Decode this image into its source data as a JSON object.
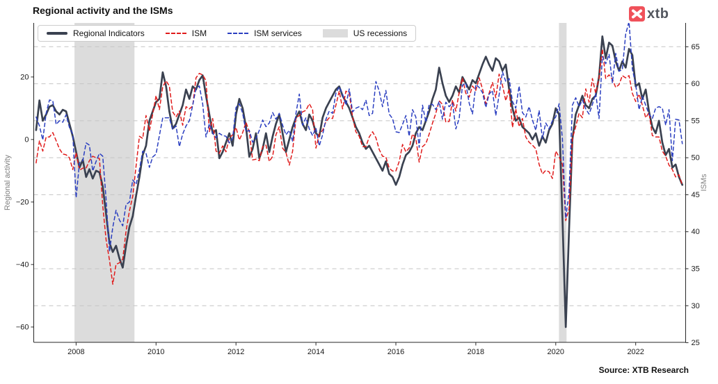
{
  "header": {
    "title": "Regional activity and the ISMs",
    "logo_text": "xtb",
    "logo_color": "#f0515a",
    "source": "Source: XTB Research"
  },
  "chart_data": {
    "type": "line",
    "title": "Regional activity and the ISMs",
    "grid": true,
    "legend_position": "top-left",
    "x_axis": {
      "range": [
        2006.94,
        2023.25
      ],
      "ticks": [
        2008,
        2010,
        2012,
        2014,
        2016,
        2018,
        2020,
        2022
      ]
    },
    "y_left": {
      "label": "Regional activity",
      "range": [
        -64.9,
        37.3
      ],
      "ticks": [
        20,
        0,
        -20,
        -40,
        -60
      ]
    },
    "y_right": {
      "label": "ISMs",
      "range": [
        25.05,
        68.22
      ],
      "ticks": [
        65,
        60,
        55,
        50,
        45,
        40,
        35,
        30,
        25
      ],
      "gridlines": [
        65,
        60,
        55,
        50,
        45,
        40,
        35,
        30
      ]
    },
    "legend": [
      {
        "label": "Regional Indicators",
        "color": "#3a4150",
        "style": "solid"
      },
      {
        "label": "ISM",
        "color": "#e01b1b",
        "style": "dashed"
      },
      {
        "label": "ISM services",
        "color": "#2a3ec0",
        "style": "dashed"
      },
      {
        "label": "US recessions",
        "color": "#dcdcdc",
        "style": "area"
      }
    ],
    "recessions": [
      {
        "from": 2007.96,
        "to": 2009.46
      },
      {
        "from": 2020.08,
        "to": 2020.27
      }
    ],
    "series": [
      {
        "name": "Regional Indicators",
        "axis": "left",
        "color": "#3a4150",
        "style": "solid",
        "width": 2.7,
        "start_year": 2007,
        "interval_months": 1,
        "values": [
          3,
          12.5,
          6,
          8,
          10.5,
          11,
          9,
          8,
          9.5,
          9,
          5,
          1,
          -4,
          -9,
          -6.5,
          -12,
          -9.5,
          -12.5,
          -10,
          -10.5,
          -15,
          -24,
          -33,
          -36,
          -34,
          -38,
          -41,
          -34,
          -28,
          -24.5,
          -18,
          -12,
          -5,
          -2,
          6,
          9,
          12,
          13,
          21.5,
          17,
          9,
          3.5,
          5,
          8,
          11,
          16,
          13,
          17,
          16,
          19,
          20.5,
          14,
          8,
          2,
          3,
          -6,
          -4,
          -1,
          2,
          -2,
          8,
          13,
          10,
          4,
          -5.5,
          -3,
          2,
          -6,
          -3,
          2,
          -4,
          1,
          5,
          8,
          2,
          -4,
          0,
          4,
          7,
          9,
          5,
          3,
          8,
          6,
          2,
          1,
          7,
          10,
          12,
          14,
          16,
          17,
          14,
          12,
          10,
          7,
          4,
          2,
          -1,
          -3,
          -2,
          -4,
          -6,
          -8,
          -10,
          -7,
          -11,
          -12,
          -14.5,
          -12,
          -8,
          -5,
          -4,
          -2,
          2,
          4,
          3,
          6,
          9,
          13,
          16,
          23,
          18,
          14,
          12,
          14,
          17,
          15,
          20,
          18,
          16,
          19,
          18,
          21,
          24,
          26.5,
          24,
          22,
          26,
          25,
          22,
          24,
          16,
          10,
          6,
          7,
          4,
          3,
          2,
          0,
          2,
          -2,
          1,
          -1,
          3,
          5,
          10,
          8,
          -25,
          -60,
          -29,
          0,
          8,
          11,
          14,
          11,
          10,
          13,
          14,
          20,
          33,
          26,
          31,
          30,
          25,
          22,
          25,
          23,
          29,
          27,
          17,
          18,
          13,
          16,
          9,
          4,
          2,
          6,
          -1,
          -5,
          -3,
          -9,
          -8,
          -12,
          -14.5
        ]
      },
      {
        "name": "ISM",
        "axis": "right",
        "color": "#e01b1b",
        "style": "dashed",
        "width": 1.5,
        "start_year": 2007,
        "interval_months": 1,
        "values": [
          49.3,
          52.3,
          50.9,
          52.8,
          52.8,
          53.4,
          52.3,
          51.2,
          50.5,
          50.4,
          50.0,
          48.4,
          50.7,
          48.3,
          48.6,
          48.6,
          49.6,
          50.2,
          50.0,
          49.9,
          43.5,
          38.9,
          36.2,
          32.9,
          35.6,
          35.8,
          36.3,
          40.1,
          42.8,
          44.8,
          48.9,
          52.9,
          52.6,
          55.7,
          53.6,
          55.9,
          58.4,
          56.5,
          59.6,
          60.4,
          59.7,
          56.2,
          55.5,
          56.3,
          54.4,
          56.9,
          56.6,
          57.0,
          60.8,
          61.4,
          61.2,
          60.4,
          53.5,
          55.3,
          50.9,
          50.6,
          51.6,
          50.8,
          52.7,
          53.1,
          54.1,
          52.4,
          53.4,
          54.8,
          53.5,
          49.7,
          49.8,
          49.6,
          51.5,
          51.7,
          49.5,
          50.2,
          53.1,
          54.2,
          51.3,
          50.7,
          49.0,
          50.9,
          55.4,
          55.7,
          56.2,
          56.4,
          57.3,
          56.5,
          51.3,
          53.2,
          53.7,
          54.9,
          55.4,
          55.3,
          57.1,
          59.0,
          56.6,
          59.0,
          58.7,
          55.5,
          53.5,
          52.9,
          51.5,
          51.5,
          52.8,
          53.5,
          52.7,
          51.1,
          50.2,
          50.1,
          48.6,
          48.2,
          48.2,
          49.5,
          51.8,
          50.8,
          51.3,
          53.2,
          52.6,
          49.4,
          51.5,
          51.9,
          53.2,
          54.7,
          56.0,
          57.7,
          57.2,
          54.8,
          54.9,
          57.8,
          56.3,
          58.8,
          60.8,
          58.7,
          58.2,
          59.7,
          59.1,
          60.8,
          59.3,
          57.3,
          58.7,
          60.2,
          58.1,
          61.3,
          59.8,
          57.7,
          59.3,
          54.1,
          56.6,
          54.2,
          55.3,
          52.8,
          52.1,
          51.7,
          51.2,
          49.1,
          47.8,
          48.3,
          48.1,
          47.2,
          50.9,
          50.1,
          49.1,
          41.5,
          43.1,
          52.6,
          54.2,
          56.0,
          55.4,
          59.3,
          57.5,
          60.7,
          58.7,
          60.8,
          64.7,
          60.7,
          61.2,
          60.6,
          59.5,
          59.9,
          61.1,
          60.8,
          61.1,
          58.7,
          57.6,
          58.6,
          57.1,
          55.4,
          56.1,
          53.0,
          52.8,
          52.8,
          50.9,
          50.2,
          49.0,
          48.4,
          47.4,
          47.7,
          46.3
        ]
      },
      {
        "name": "ISM services",
        "axis": "right",
        "color": "#2a3ec0",
        "style": "dashed",
        "width": 1.5,
        "start_year": 2007,
        "interval_months": 1,
        "values": [
          55.5,
          54.3,
          52.4,
          56.0,
          57.8,
          57.7,
          54.5,
          55.0,
          54.8,
          55.8,
          54.1,
          53.2,
          44.6,
          49.3,
          49.6,
          52.0,
          51.7,
          48.2,
          49.5,
          50.6,
          50.2,
          44.4,
          37.3,
          40.6,
          42.9,
          41.6,
          40.8,
          43.7,
          44.0,
          47.0,
          46.4,
          48.4,
          50.9,
          50.6,
          48.7,
          50.1,
          50.5,
          53.0,
          55.4,
          55.4,
          55.4,
          53.8,
          54.3,
          51.5,
          53.2,
          54.3,
          55.0,
          57.1,
          59.4,
          59.7,
          57.3,
          52.8,
          54.6,
          53.3,
          52.7,
          53.3,
          53.0,
          52.9,
          52.0,
          52.6,
          56.8,
          57.3,
          56.0,
          53.5,
          53.7,
          52.1,
          52.6,
          53.7,
          55.1,
          54.2,
          54.7,
          56.1,
          55.2,
          56.0,
          54.4,
          53.1,
          53.7,
          52.2,
          56.0,
          58.6,
          54.4,
          55.4,
          53.9,
          53.0,
          54.0,
          51.6,
          53.1,
          55.2,
          56.3,
          56.0,
          58.7,
          59.6,
          58.6,
          57.1,
          59.3,
          56.2,
          56.7,
          56.9,
          56.5,
          57.8,
          55.7,
          56.0,
          60.3,
          59.0,
          56.9,
          59.1,
          55.9,
          55.3,
          53.5,
          53.4,
          54.5,
          55.7,
          52.9,
          56.5,
          55.5,
          51.4,
          57.1,
          54.8,
          57.2,
          57.2,
          56.5,
          57.6,
          55.2,
          57.5,
          56.9,
          57.4,
          53.9,
          55.3,
          59.8,
          60.1,
          57.4,
          55.9,
          59.9,
          59.5,
          58.8,
          56.8,
          58.6,
          59.1,
          55.7,
          58.5,
          61.6,
          60.3,
          60.7,
          57.6,
          56.7,
          59.7,
          56.1,
          55.5,
          56.9,
          55.1,
          53.7,
          56.4,
          52.6,
          54.7,
          53.9,
          55.0,
          55.5,
          57.3,
          52.5,
          41.8,
          45.4,
          57.1,
          58.1,
          56.9,
          57.8,
          56.6,
          55.9,
          57.2,
          58.7,
          55.3,
          63.7,
          62.7,
          64.0,
          60.1,
          64.1,
          61.7,
          61.9,
          66.7,
          68.4,
          62.0,
          59.9,
          56.5,
          58.3,
          57.1,
          55.9,
          55.3,
          56.7,
          56.9,
          56.7,
          54.4,
          56.5,
          49.6,
          55.2,
          55.1,
          51.9
        ]
      }
    ],
    "source": "Source: XTB Research"
  }
}
